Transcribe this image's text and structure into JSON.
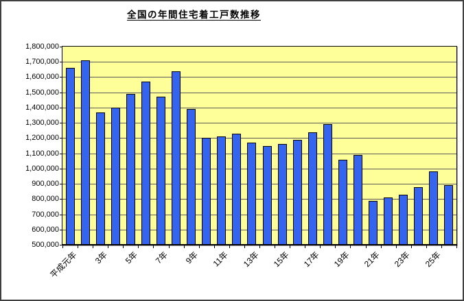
{
  "chart_data": {
    "type": "bar",
    "title": "全国の年間住宅着工戸数推移",
    "xlabel": "",
    "ylabel": "",
    "x_tick_labels": [
      "平成元年",
      "3年",
      "5年",
      "7年",
      "9年",
      "11年",
      "13年",
      "15年",
      "17年",
      "19年",
      "21年",
      "23年",
      "25年"
    ],
    "label_every_n_bars": 2,
    "values": [
      1660000,
      1710000,
      1370000,
      1400000,
      1490000,
      1570000,
      1470000,
      1640000,
      1390000,
      1200000,
      1210000,
      1230000,
      1170000,
      1150000,
      1160000,
      1190000,
      1240000,
      1290000,
      1060000,
      1090000,
      790000,
      810000,
      830000,
      880000,
      980000,
      890000
    ],
    "ylim": [
      500000,
      1800000
    ],
    "ytick_step": 100000,
    "grid": true,
    "legend": "none",
    "colors": {
      "bar_fill": "#3565EF",
      "bar_border": "#000000",
      "plot_bg": "#FFFF99",
      "grid_line": "#5a5a5a",
      "outer_border": "#3f3f3f",
      "text": "#000000"
    }
  }
}
